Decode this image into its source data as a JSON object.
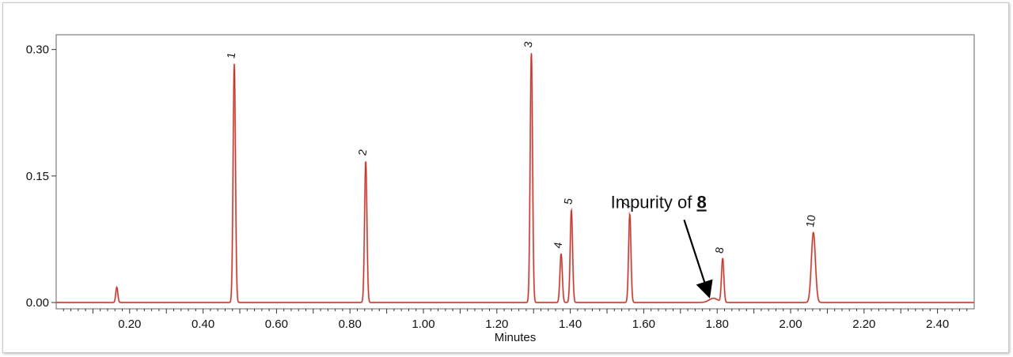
{
  "chart_data": {
    "type": "line",
    "title": "",
    "xlabel": "Minutes",
    "ylabel": "",
    "xlim": [
      0.0,
      2.5
    ],
    "ylim": [
      -0.0075,
      0.3175
    ],
    "x_ticks": [
      "0.20",
      "0.40",
      "0.60",
      "0.80",
      "1.00",
      "1.20",
      "1.40",
      "1.60",
      "1.80",
      "2.00",
      "2.20",
      "2.40"
    ],
    "x_tick_values": [
      0.2,
      0.4,
      0.6,
      0.8,
      1.0,
      1.2,
      1.4,
      1.6,
      1.8,
      2.0,
      2.2,
      2.4
    ],
    "y_ticks": [
      "0.00",
      "0.15",
      "0.30"
    ],
    "y_tick_values": [
      0.0,
      0.15,
      0.3
    ],
    "grid": false,
    "colors": {
      "trace": "#c0392b",
      "trace_shadow": "#e8a0a0"
    },
    "peaks": [
      {
        "label": "",
        "x": 0.165,
        "y": 0.018
      },
      {
        "label": "1",
        "x": 0.485,
        "y": 0.283
      },
      {
        "label": "2",
        "x": 0.843,
        "y": 0.168
      },
      {
        "label": "3",
        "x": 1.294,
        "y": 0.296
      },
      {
        "label": "4",
        "x": 1.375,
        "y": 0.058
      },
      {
        "label": "5",
        "x": 1.403,
        "y": 0.11
      },
      {
        "label": "7",
        "x": 1.562,
        "y": 0.105
      },
      {
        "label": "",
        "x": 1.79,
        "y": 0.005
      },
      {
        "label": "8",
        "x": 1.815,
        "y": 0.052
      },
      {
        "label": "10",
        "x": 2.062,
        "y": 0.083
      }
    ],
    "annotation": {
      "text": "Impurity of ",
      "bold_text": "8",
      "points_to_x": 1.79,
      "points_to_y": 0.005
    }
  }
}
